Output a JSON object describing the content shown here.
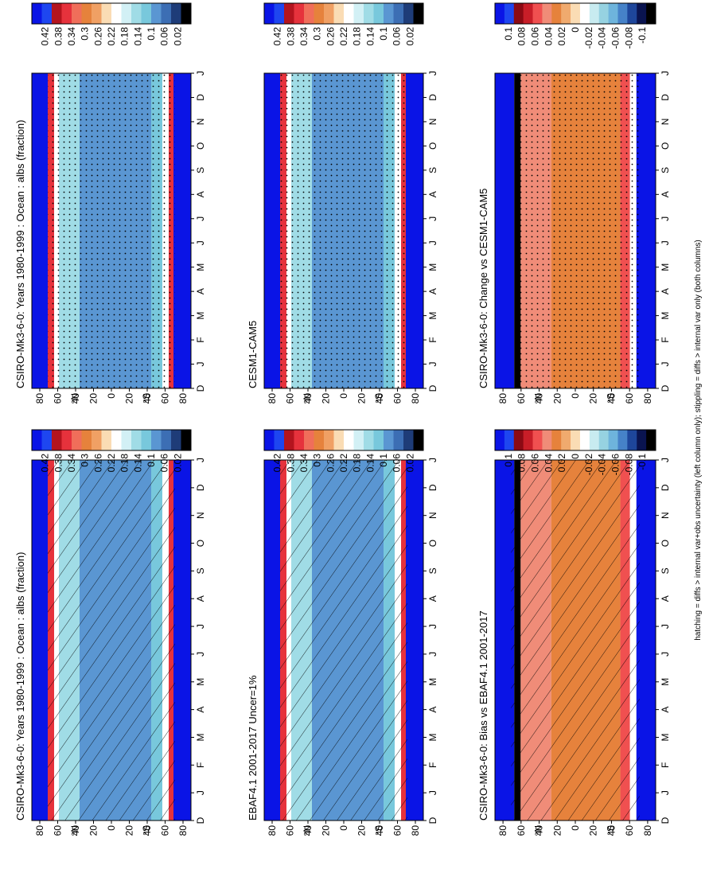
{
  "figure": {
    "footer_note": "hatching = diffs > internal var+obs uncertainty (left column only); stippling = diffs > internal var only (both columns)",
    "orientation": "rotated-90-clockwise"
  },
  "chart_data": [
    {
      "type": "heatmap",
      "title": "CSIRO-Mk3-6-0: Years 1980-1999 : Ocean : albs (fraction)",
      "x_ticks": [
        "D",
        "J",
        "F",
        "M",
        "A",
        "M",
        "J",
        "J",
        "A",
        "S",
        "O",
        "N",
        "D",
        "J"
      ],
      "y_ticks": [
        "80",
        "60",
        "40",
        "20",
        "0",
        "20",
        "40",
        "60",
        "80"
      ],
      "y_hemisphere_labels": [
        "N",
        "S"
      ],
      "colorbar_ticks": [
        "0.42",
        "0.38",
        "0.34",
        "0.3",
        "0.26",
        "0.22",
        "0.18",
        "0.14",
        "0.1",
        "0.06",
        "0.02"
      ],
      "colorscale": "albedo",
      "overlay": "hatching"
    },
    {
      "type": "heatmap",
      "title": "EBAF4.1 2001-2017 Uncer=1%",
      "x_ticks": [
        "D",
        "J",
        "F",
        "M",
        "A",
        "M",
        "J",
        "J",
        "A",
        "S",
        "O",
        "N",
        "D",
        "J"
      ],
      "y_ticks": [
        "80",
        "60",
        "40",
        "20",
        "0",
        "20",
        "40",
        "60",
        "80"
      ],
      "y_hemisphere_labels": [
        "N",
        "S"
      ],
      "colorbar_ticks": [
        "0.42",
        "0.38",
        "0.34",
        "0.3",
        "0.26",
        "0.22",
        "0.18",
        "0.14",
        "0.1",
        "0.06",
        "0.02"
      ],
      "colorscale": "albedo",
      "overlay": "hatching"
    },
    {
      "type": "heatmap",
      "title": "CSIRO-Mk3-6-0: Bias vs EBAF4.1 2001-2017",
      "x_ticks": [
        "D",
        "J",
        "F",
        "M",
        "A",
        "M",
        "J",
        "J",
        "A",
        "S",
        "O",
        "N",
        "D",
        "J"
      ],
      "y_ticks": [
        "80",
        "60",
        "40",
        "20",
        "0",
        "20",
        "40",
        "60",
        "80"
      ],
      "y_hemisphere_labels": [
        "N",
        "S"
      ],
      "colorbar_ticks": [
        "0.1",
        "0.08",
        "0.06",
        "0.04",
        "0.02",
        "0",
        "-0.02",
        "-0.04",
        "-0.06",
        "-0.08",
        "-0.1"
      ],
      "colorscale": "difference",
      "overlay": "hatching"
    },
    {
      "type": "heatmap",
      "title": "CSIRO-Mk3-6-0: Years 1980-1999 : Ocean : albs (fraction)",
      "x_ticks": [
        "D",
        "J",
        "F",
        "M",
        "A",
        "M",
        "J",
        "J",
        "A",
        "S",
        "O",
        "N",
        "D",
        "J"
      ],
      "y_ticks": [
        "80",
        "60",
        "40",
        "20",
        "0",
        "20",
        "40",
        "60",
        "80"
      ],
      "y_hemisphere_labels": [
        "N",
        "S"
      ],
      "colorbar_ticks": [
        "0.42",
        "0.38",
        "0.34",
        "0.3",
        "0.26",
        "0.22",
        "0.18",
        "0.14",
        "0.1",
        "0.06",
        "0.02"
      ],
      "colorscale": "albedo",
      "overlay": "stippling"
    },
    {
      "type": "heatmap",
      "title": "CESM1-CAM5",
      "x_ticks": [
        "D",
        "J",
        "F",
        "M",
        "A",
        "M",
        "J",
        "J",
        "A",
        "S",
        "O",
        "N",
        "D",
        "J"
      ],
      "y_ticks": [
        "80",
        "60",
        "40",
        "20",
        "0",
        "20",
        "40",
        "60",
        "80"
      ],
      "y_hemisphere_labels": [
        "N",
        "S"
      ],
      "colorbar_ticks": [
        "0.42",
        "0.38",
        "0.34",
        "0.3",
        "0.26",
        "0.22",
        "0.18",
        "0.14",
        "0.1",
        "0.06",
        "0.02"
      ],
      "colorscale": "albedo",
      "overlay": "stippling"
    },
    {
      "type": "heatmap",
      "title": "CSIRO-Mk3-6-0: Change vs CESM1-CAM5",
      "x_ticks": [
        "D",
        "J",
        "F",
        "M",
        "A",
        "M",
        "J",
        "J",
        "A",
        "S",
        "O",
        "N",
        "D",
        "J"
      ],
      "y_ticks": [
        "80",
        "60",
        "40",
        "20",
        "0",
        "20",
        "40",
        "60",
        "80"
      ],
      "y_hemisphere_labels": [
        "N",
        "S"
      ],
      "colorbar_ticks": [
        "0.1",
        "0.08",
        "0.06",
        "0.04",
        "0.02",
        "0",
        "-0.02",
        "-0.04",
        "-0.06",
        "-0.08",
        "-0.1"
      ],
      "colorscale": "difference",
      "overlay": "stippling"
    }
  ],
  "colorscales": {
    "albedo": [
      "#0a14e6",
      "#1e46f0",
      "#b4141e",
      "#e6323c",
      "#f06e5a",
      "#e6823c",
      "#f0a064",
      "#fadcb4",
      "#ffffff",
      "#d2f0f5",
      "#a0dce6",
      "#78c8dc",
      "#5a96d2",
      "#3c6eb4",
      "#1e3c78",
      "#000000"
    ],
    "difference": [
      "#0a14e6",
      "#1e46f0",
      "#8c0a14",
      "#c81e28",
      "#f05050",
      "#f08c78",
      "#e6823c",
      "#f0aa6e",
      "#fadcb4",
      "#ffffff",
      "#c8ebf0",
      "#96d2e1",
      "#6eb4dc",
      "#4682c8",
      "#1e469b",
      "#0a1450",
      "#000000"
    ]
  }
}
